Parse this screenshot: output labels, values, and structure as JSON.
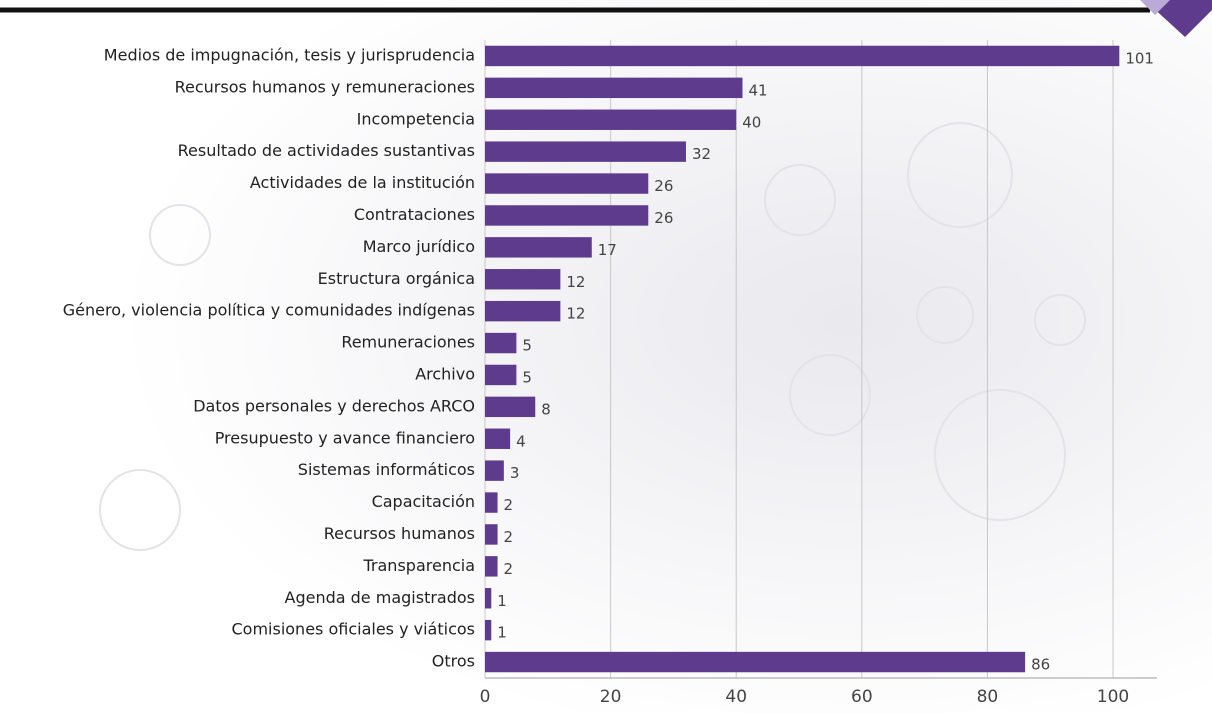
{
  "chart_data": {
    "type": "bar",
    "orientation": "horizontal",
    "categories": [
      "Medios de impugnación, tesis y jurisprudencia",
      "Recursos humanos y remuneraciones",
      "Incompetencia",
      "Resultado de actividades sustantivas",
      "Actividades de la institución",
      "Contrataciones",
      "Marco jurídico",
      "Estructura orgánica",
      "Género, violencia política y comunidades indígenas",
      "Remuneraciones",
      "Archivo",
      "Datos personales y derechos ARCO",
      "Presupuesto y avance financiero",
      "Sistemas informáticos",
      "Capacitación",
      "Recursos humanos",
      "Transparencia",
      "Agenda de magistrados",
      "Comisiones oficiales y viáticos",
      "Otros"
    ],
    "values": [
      101,
      41,
      40,
      32,
      26,
      26,
      17,
      12,
      12,
      5,
      5,
      8,
      4,
      3,
      2,
      2,
      2,
      1,
      1,
      86
    ],
    "color": "#5e3b8d",
    "xlim": [
      0,
      107
    ],
    "xticks": [
      0,
      20,
      40,
      60,
      80,
      100
    ],
    "grid": true
  }
}
